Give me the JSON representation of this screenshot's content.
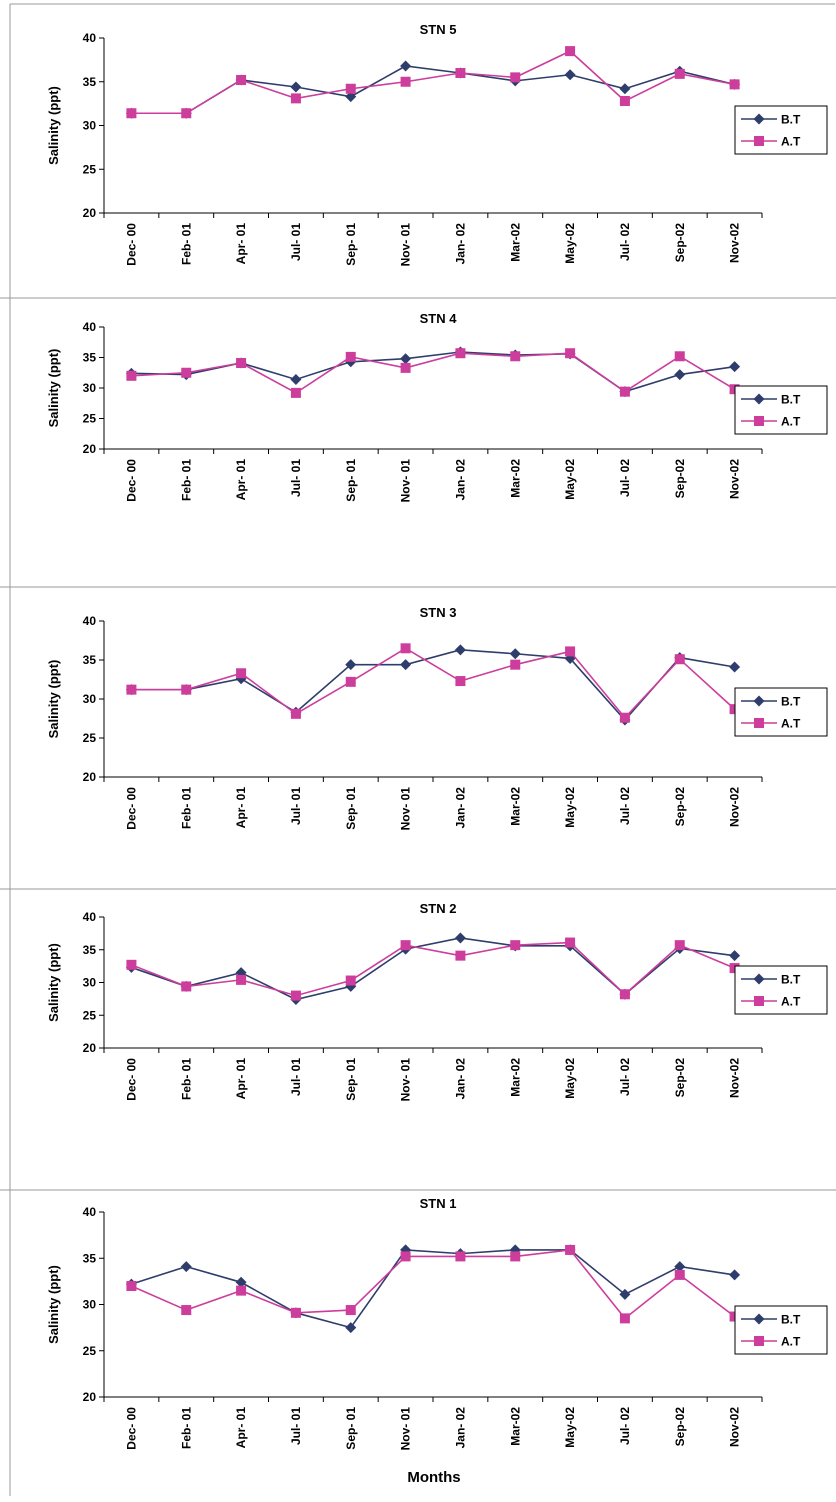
{
  "chart_data": [
    {
      "type": "line",
      "title": "STN 5",
      "ylabel": "Salinity (ppt)",
      "xlabel": "",
      "ylim": [
        20,
        40
      ],
      "yticks": [
        "20",
        "25",
        "30",
        "35",
        "40"
      ],
      "categories": [
        "Dec- 00",
        "Feb- 01",
        "Apr- 01",
        "Jul- 01",
        "Sep- 01",
        "Nov- 01",
        "Jan- 02",
        "Mar-02",
        "May-02",
        "Jul- 02",
        "Sep-02",
        "Nov-02"
      ],
      "legend": "right",
      "series": [
        {
          "name": "B.T",
          "color": "#2e3d6b",
          "marker": "diamond",
          "values": [
            31.4,
            31.4,
            35.2,
            34.4,
            33.3,
            36.8,
            36.0,
            35.1,
            35.8,
            34.2,
            36.2,
            34.7
          ]
        },
        {
          "name": "A.T",
          "color": "#cc3d9c",
          "marker": "square",
          "values": [
            31.4,
            31.4,
            35.2,
            33.1,
            34.2,
            35.0,
            36.0,
            35.5,
            38.5,
            32.8,
            35.9,
            34.7
          ]
        }
      ]
    },
    {
      "type": "line",
      "title": "STN 4",
      "ylabel": "Salinity (ppt)",
      "xlabel": "",
      "ylim": [
        20,
        40
      ],
      "yticks": [
        "20",
        "25",
        "30",
        "35",
        "40"
      ],
      "categories": [
        "Dec- 00",
        "Feb- 01",
        "Apr- 01",
        "Jul- 01",
        "Sep- 01",
        "Nov- 01",
        "Jan- 02",
        "Mar-02",
        "May-02",
        "Jul- 02",
        "Sep-02",
        "Nov-02"
      ],
      "legend": "right",
      "series": [
        {
          "name": "B.T",
          "color": "#2e3d6b",
          "marker": "diamond",
          "values": [
            32.4,
            32.2,
            34.1,
            31.4,
            34.3,
            34.8,
            35.9,
            35.4,
            35.6,
            29.4,
            32.2,
            33.5
          ]
        },
        {
          "name": "A.T",
          "color": "#cc3d9c",
          "marker": "square",
          "values": [
            32.0,
            32.5,
            34.1,
            29.2,
            35.1,
            33.3,
            35.7,
            35.2,
            35.7,
            29.4,
            35.2,
            29.8
          ]
        }
      ]
    },
    {
      "type": "line",
      "title": "STN 3",
      "ylabel": "Salinity (ppt)",
      "xlabel": "",
      "ylim": [
        20,
        40
      ],
      "yticks": [
        "20",
        "25",
        "30",
        "35",
        "40"
      ],
      "categories": [
        "Dec- 00",
        "Feb- 01",
        "Apr- 01",
        "Jul- 01",
        "Sep- 01",
        "Nov- 01",
        "Jan- 02",
        "Mar-02",
        "May-02",
        "Jul- 02",
        "Sep-02",
        "Nov-02"
      ],
      "legend": "right",
      "series": [
        {
          "name": "B.T",
          "color": "#2e3d6b",
          "marker": "diamond",
          "values": [
            31.2,
            31.2,
            32.6,
            28.3,
            34.4,
            34.4,
            36.3,
            35.8,
            35.2,
            27.3,
            35.3,
            34.1
          ]
        },
        {
          "name": "A.T",
          "color": "#cc3d9c",
          "marker": "square",
          "values": [
            31.2,
            31.2,
            33.3,
            28.1,
            32.2,
            36.5,
            32.3,
            34.4,
            36.1,
            27.6,
            35.1,
            28.7
          ]
        }
      ]
    },
    {
      "type": "line",
      "title": "STN 2",
      "ylabel": "Salinity (ppt)",
      "xlabel": "",
      "ylim": [
        20,
        40
      ],
      "yticks": [
        "20",
        "25",
        "30",
        "35",
        "40"
      ],
      "categories": [
        "Dec- 00",
        "Feb- 01",
        "Apr- 01",
        "Jul- 01",
        "Sep- 01",
        "Nov- 01",
        "Jan- 02",
        "Mar-02",
        "May-02",
        "Jul- 02",
        "Sep-02",
        "Nov-02"
      ],
      "legend": "right",
      "series": [
        {
          "name": "B.T",
          "color": "#2e3d6b",
          "marker": "diamond",
          "values": [
            32.3,
            29.4,
            31.5,
            27.4,
            29.4,
            35.1,
            36.8,
            35.6,
            35.6,
            28.2,
            35.2,
            34.1
          ]
        },
        {
          "name": "A.T",
          "color": "#cc3d9c",
          "marker": "square",
          "values": [
            32.7,
            29.4,
            30.4,
            28.0,
            30.3,
            35.7,
            34.1,
            35.7,
            36.1,
            28.2,
            35.7,
            32.2
          ]
        }
      ]
    },
    {
      "type": "line",
      "title": "STN 1",
      "ylabel": "Salinity (ppt)",
      "xlabel": "Months",
      "ylim": [
        20,
        40
      ],
      "yticks": [
        "20",
        "25",
        "30",
        "35",
        "40"
      ],
      "categories": [
        "Dec- 00",
        "Feb- 01",
        "Apr- 01",
        "Jul- 01",
        "Sep- 01",
        "Nov- 01",
        "Jan- 02",
        "Mar-02",
        "May-02",
        "Jul- 02",
        "Sep-02",
        "Nov-02"
      ],
      "legend": "right",
      "series": [
        {
          "name": "B.T",
          "color": "#2e3d6b",
          "marker": "diamond",
          "values": [
            32.2,
            34.1,
            32.4,
            29.1,
            27.5,
            35.9,
            35.5,
            35.9,
            35.9,
            31.1,
            34.1,
            33.2
          ]
        },
        {
          "name": "A.T",
          "color": "#cc3d9c",
          "marker": "square",
          "values": [
            32.0,
            29.4,
            31.5,
            29.1,
            29.4,
            35.2,
            35.2,
            35.2,
            35.9,
            28.5,
            33.2,
            28.7
          ]
        }
      ]
    }
  ]
}
